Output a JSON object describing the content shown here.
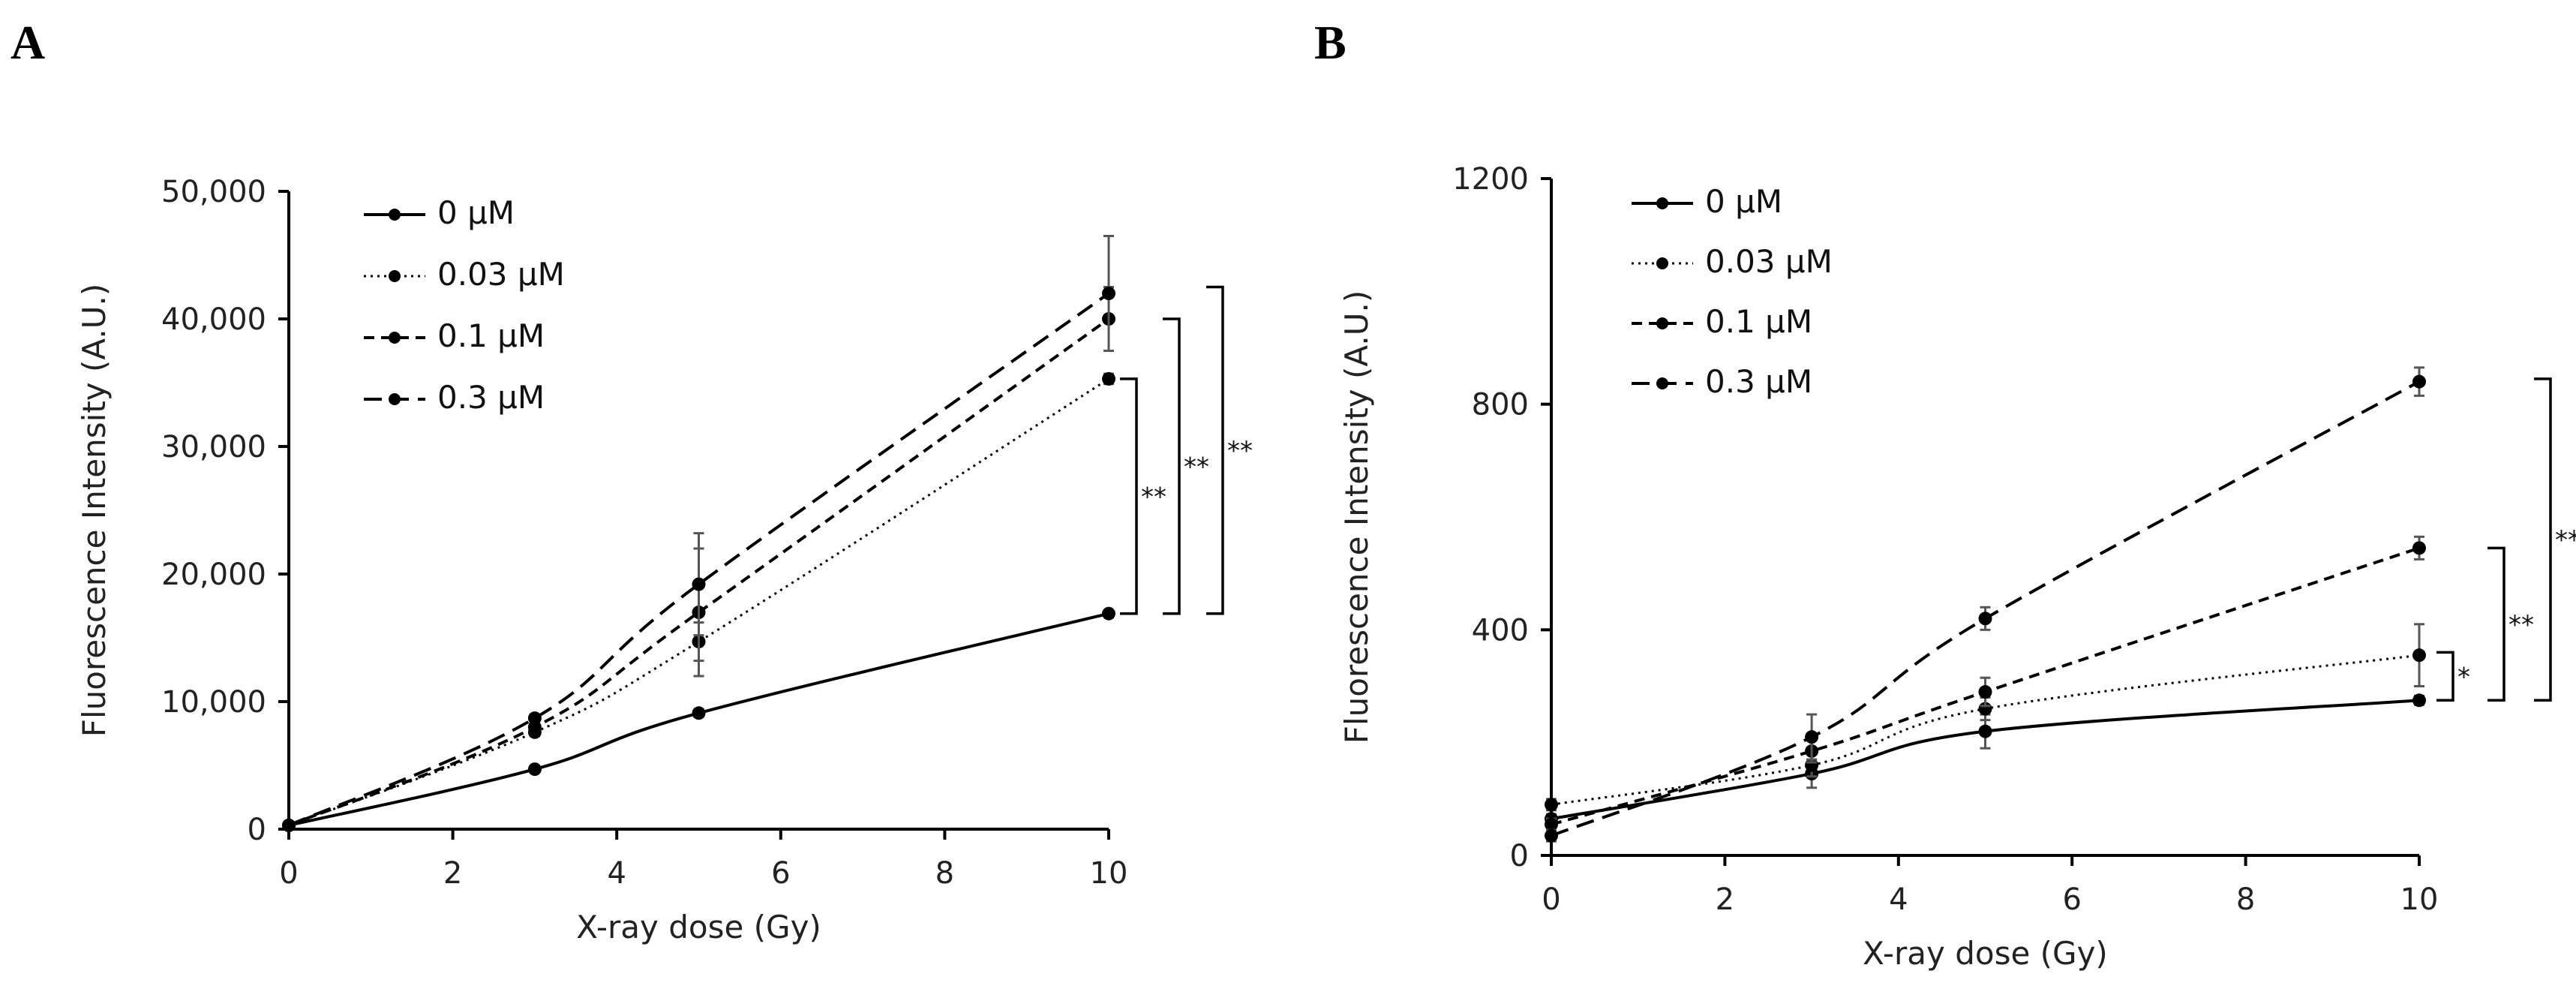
{
  "chart_data": [
    {
      "panel": "A",
      "type": "line",
      "xlabel": "X-ray dose (Gy)",
      "ylabel": "Fluorescence Intensity (A.U.)",
      "xlim": [
        0,
        10
      ],
      "ylim": [
        0,
        50000
      ],
      "xticks": [
        0,
        2,
        4,
        6,
        8,
        10
      ],
      "xtick_labels": [
        "0",
        "2",
        "4",
        "6",
        "8",
        "10"
      ],
      "yticks": [
        0,
        10000,
        20000,
        30000,
        40000,
        50000
      ],
      "ytick_labels": [
        "0",
        "10,000",
        "20,000",
        "30,000",
        "40,000",
        "50,000"
      ],
      "x": [
        0,
        3,
        5,
        10
      ],
      "legend_position": "top-left",
      "series": [
        {
          "name": "0 μM",
          "style": "solid",
          "values": [
            300,
            4700,
            9100,
            16900
          ],
          "errors": [
            100,
            150,
            300,
            200
          ]
        },
        {
          "name": "0.03  μM",
          "style": "dotted",
          "values": [
            300,
            7600,
            14700,
            35300
          ],
          "errors": [
            100,
            300,
            1500,
            400
          ]
        },
        {
          "name": "0.1  μM",
          "style": "dashed",
          "values": [
            300,
            8000,
            17000,
            40000
          ],
          "errors": [
            100,
            300,
            5000,
            2500
          ]
        },
        {
          "name": "0.3  μM",
          "style": "longdash",
          "values": [
            300,
            8700,
            19200,
            42000
          ],
          "errors": [
            100,
            300,
            4000,
            4500
          ]
        }
      ],
      "significance": [
        {
          "label": "**",
          "y_top": 35300,
          "y_bottom": 16900
        },
        {
          "label": "**",
          "y_top": 40000,
          "y_bottom": 16900
        },
        {
          "label": "**",
          "y_top": 42500,
          "y_bottom": 16900
        }
      ]
    },
    {
      "panel": "B",
      "type": "line",
      "xlabel": "X-ray dose (Gy)",
      "ylabel": "Fluorescence Intensity (A.U.)",
      "xlim": [
        0,
        10
      ],
      "ylim": [
        0,
        1200
      ],
      "xticks": [
        0,
        2,
        4,
        6,
        8,
        10
      ],
      "xtick_labels": [
        "0",
        "2",
        "4",
        "6",
        "8",
        "10"
      ],
      "yticks": [
        0,
        400,
        800,
        1200
      ],
      "ytick_labels": [
        "0",
        "400",
        "800",
        "1200"
      ],
      "x": [
        0,
        3,
        5,
        10
      ],
      "legend_position": "top-left",
      "series": [
        {
          "name": "0 μM",
          "style": "solid",
          "values": [
            65,
            145,
            220,
            275
          ],
          "errors": [
            8,
            25,
            30,
            8
          ]
        },
        {
          "name": "0.03  μM",
          "style": "dotted",
          "values": [
            90,
            160,
            260,
            355
          ],
          "errors": [
            10,
            20,
            20,
            55
          ]
        },
        {
          "name": "0.1  μM",
          "style": "dashed",
          "values": [
            55,
            185,
            290,
            545
          ],
          "errors": [
            10,
            20,
            25,
            20
          ]
        },
        {
          "name": "0.3  μM",
          "style": "longdash",
          "values": [
            35,
            210,
            420,
            840
          ],
          "errors": [
            10,
            40,
            20,
            25
          ]
        }
      ],
      "significance": [
        {
          "label": "*",
          "y_top": 360,
          "y_bottom": 275
        },
        {
          "label": "**",
          "y_top": 545,
          "y_bottom": 275
        },
        {
          "label": "**",
          "y_top": 845,
          "y_bottom": 275
        }
      ]
    }
  ]
}
